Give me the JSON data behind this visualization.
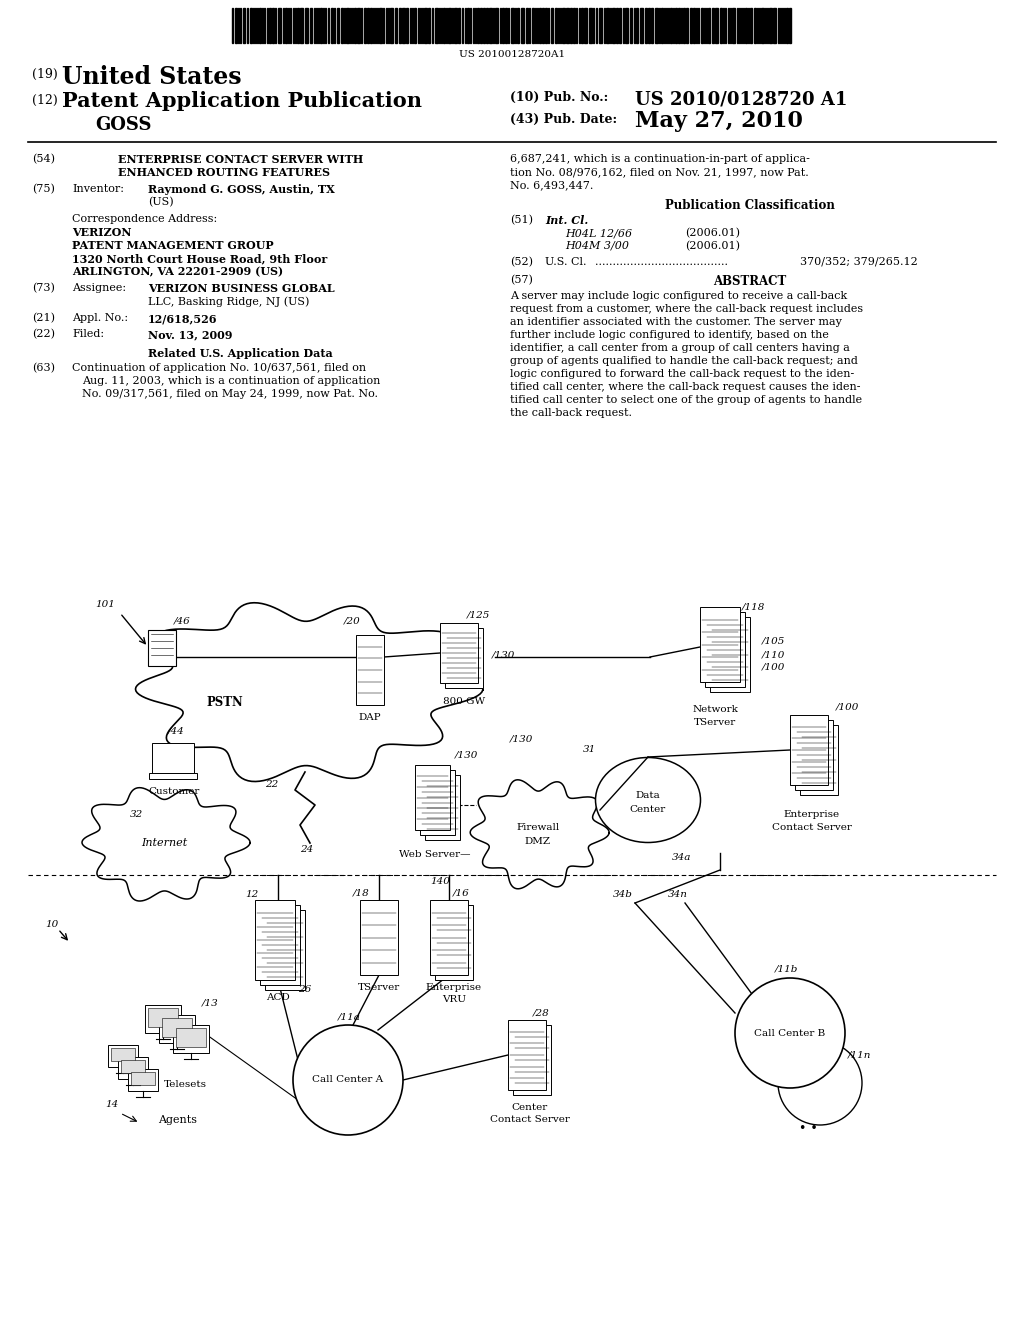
{
  "background_color": "#ffffff",
  "page_width": 10.24,
  "page_height": 13.2,
  "barcode_text": "US 20100128720A1",
  "header": {
    "country_num": "(19)",
    "country": "United States",
    "type_num": "(12)",
    "type": "Patent Application Publication",
    "inventor_last": "GOSS",
    "pub_num_label": "(10) Pub. No.:",
    "pub_num": "US 2010/0128720 A1",
    "pub_date_label": "(43) Pub. Date:",
    "pub_date": "May 27, 2010"
  },
  "left_col": {
    "title_num": "(54)",
    "title_line1": "ENTERPRISE CONTACT SERVER WITH",
    "title_line2": "ENHANCED ROUTING FEATURES",
    "inventor_num": "(75)",
    "inventor_label": "Inventor:",
    "inventor_val": "Raymond G. GOSS, Austin, TX",
    "inventor_val2": "(US)",
    "corr_label": "Correspondence Address:",
    "corr_line1": "VERIZON",
    "corr_line2": "PATENT MANAGEMENT GROUP",
    "corr_line3": "1320 North Court House Road, 9th Floor",
    "corr_line4": "ARLINGTON, VA 22201-2909 (US)",
    "assignee_num": "(73)",
    "assignee_label": "Assignee:",
    "assignee_val1": "VERIZON BUSINESS GLOBAL",
    "assignee_val2": "LLC, Basking Ridge, NJ (US)",
    "appl_num": "(21)",
    "appl_label": "Appl. No.:",
    "appl_val": "12/618,526",
    "filed_num": "(22)",
    "filed_label": "Filed:",
    "filed_val": "Nov. 13, 2009",
    "related_title": "Related U.S. Application Data",
    "related_63": "(63)",
    "related_text1": "Continuation of application No. 10/637,561, filed on",
    "related_text2": "Aug. 11, 2003, which is a continuation of application",
    "related_text3": "No. 09/317,561, filed on May 24, 1999, now Pat. No."
  },
  "right_col": {
    "cont_text1": "6,687,241, which is a continuation-in-part of applica-",
    "cont_text2": "tion No. 08/976,162, filed on Nov. 21, 1997, now Pat.",
    "cont_text3": "No. 6,493,447.",
    "pub_class_title": "Publication Classification",
    "int_cl_num": "(51)",
    "int_cl_label": "Int. Cl.",
    "int_cl_1_code": "H04L 12/66",
    "int_cl_1_year": "(2006.01)",
    "int_cl_2_code": "H04M 3/00",
    "int_cl_2_year": "(2006.01)",
    "us_cl_num": "(52)",
    "us_cl_label": "U.S. Cl.",
    "us_cl_dots": "......................................",
    "us_cl_val": "370/352; 379/265.12",
    "abstract_num": "(57)",
    "abstract_title": "ABSTRACT",
    "abstract_text1": "A server may include logic configured to receive a call-back",
    "abstract_text2": "request from a customer, where the call-back request includes",
    "abstract_text3": "an identifier associated with the customer. The server may",
    "abstract_text4": "further include logic configured to identify, based on the",
    "abstract_text5": "identifier, a call center from a group of call centers having a",
    "abstract_text6": "group of agents qualified to handle the call-back request; and",
    "abstract_text7": "logic configured to forward the call-back request to the iden-",
    "abstract_text8": "tified call center, where the call-back request causes the iden-",
    "abstract_text9": "tified call center to select one of the group of agents to handle",
    "abstract_text10": "the call-back request."
  }
}
